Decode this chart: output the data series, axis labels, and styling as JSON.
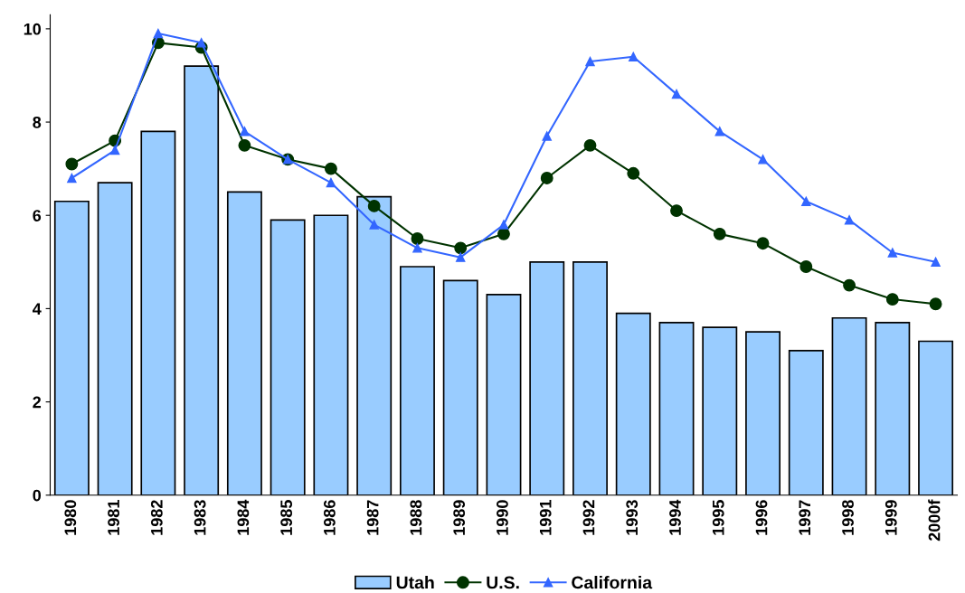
{
  "chart_data": {
    "type": "bar",
    "categories": [
      "1980",
      "1981",
      "1982",
      "1983",
      "1984",
      "1985",
      "1986",
      "1987",
      "1988",
      "1989",
      "1990",
      "1991",
      "1992",
      "1993",
      "1994",
      "1995",
      "1996",
      "1997",
      "1998",
      "1999",
      "2000f"
    ],
    "series": [
      {
        "name": "Utah",
        "color": "#99ccff",
        "values": [
          6.3,
          6.7,
          7.8,
          9.2,
          6.5,
          5.9,
          6.0,
          6.4,
          4.9,
          4.6,
          4.3,
          5.0,
          5.0,
          3.9,
          3.7,
          3.6,
          3.5,
          3.1,
          3.8,
          3.7,
          3.3
        ]
      },
      {
        "name": "U.S.",
        "type": "line",
        "color": "#003300",
        "marker": "circle",
        "values": [
          7.1,
          7.6,
          9.7,
          9.6,
          7.5,
          7.2,
          7.0,
          6.2,
          5.5,
          5.3,
          5.6,
          6.8,
          7.5,
          6.9,
          6.1,
          5.6,
          5.4,
          4.9,
          4.5,
          4.2,
          4.1
        ]
      },
      {
        "name": "California",
        "type": "line",
        "color": "#3366ff",
        "marker": "triangle",
        "values": [
          6.8,
          7.4,
          9.9,
          9.7,
          7.8,
          7.2,
          6.7,
          5.8,
          5.3,
          5.1,
          5.8,
          7.7,
          9.3,
          9.4,
          8.6,
          7.8,
          7.2,
          6.3,
          5.9,
          5.2,
          5.0
        ]
      }
    ],
    "ylim": [
      0,
      10.3
    ],
    "yticks": [
      0,
      2,
      4,
      6,
      8,
      10
    ],
    "grid": false,
    "legend": "bottom"
  }
}
